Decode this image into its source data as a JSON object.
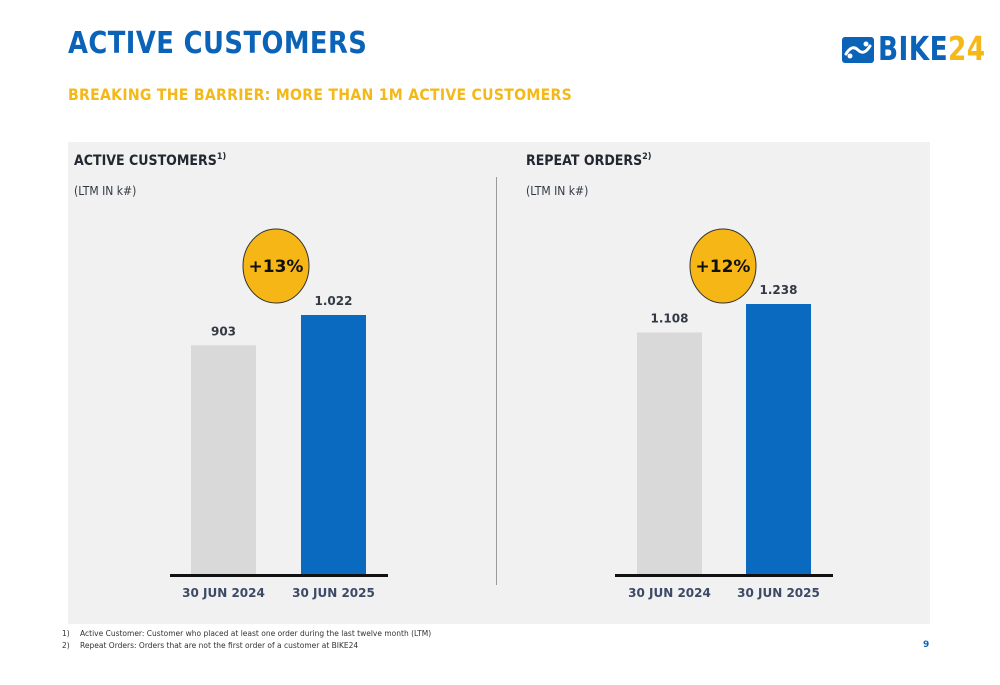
{
  "slide": {
    "title": "ACTIVE CUSTOMERS",
    "subtitle": "BREAKING THE BARRIER: MORE THAN 1M ACTIVE CUSTOMERS",
    "page_number": "9"
  },
  "logo": {
    "icon": "bike-chain-icon",
    "text_main": "BIKE",
    "text_num": "24",
    "colors": {
      "main": "#0b63b8",
      "num": "#f4b818"
    }
  },
  "colors": {
    "title": "#0b63b8",
    "subtitle": "#f4b818",
    "bar_previous": "#d9d9d9",
    "bar_current": "#0a6ac0",
    "growth_bubble": "#f6b615",
    "panel_background": "#f1f1f1"
  },
  "chart_data": [
    {
      "type": "bar",
      "title": "ACTIVE CUSTOMERS",
      "title_footnote": "1)",
      "subtitle": "(LTM IN k#)",
      "categories": [
        "30 JUN 2024",
        "30 JUN 2025"
      ],
      "values": [
        903,
        1022
      ],
      "value_labels": [
        "903",
        "1.022"
      ],
      "growth": "+13%",
      "ylim": [
        0,
        1100
      ]
    },
    {
      "type": "bar",
      "title": "REPEAT ORDERS",
      "title_footnote": "2)",
      "subtitle": "(LTM IN k#)",
      "categories": [
        "30 JUN 2024",
        "30 JUN 2025"
      ],
      "values": [
        1108,
        1238
      ],
      "value_labels": [
        "1.108",
        "1.238"
      ],
      "growth": "+12%",
      "ylim": [
        0,
        1300
      ]
    }
  ],
  "footnotes": [
    {
      "num": "1)",
      "text": "Active Customer: Customer who placed at least one order during the last twelve month (LTM)"
    },
    {
      "num": "2)",
      "text": "Repeat Orders: Orders that are not the first order of a customer at BIKE24"
    }
  ]
}
